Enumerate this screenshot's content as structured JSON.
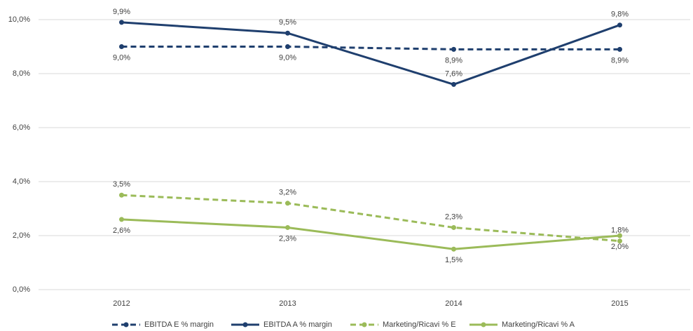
{
  "chart_data": {
    "type": "line",
    "categories": [
      "2012",
      "2013",
      "2014",
      "2015"
    ],
    "series": [
      {
        "name": "EBITDA E % margin",
        "color": "#1f3f6e",
        "dashed": true,
        "values": [
          9.0,
          9.0,
          8.9,
          8.9
        ],
        "value_labels": [
          "9,0%",
          "9,0%",
          "8,9%",
          "8,9%"
        ]
      },
      {
        "name": "EBITDA A % margin",
        "color": "#1f3f6e",
        "dashed": false,
        "values": [
          9.9,
          9.5,
          7.6,
          9.8
        ],
        "value_labels": [
          "9,9%",
          "9,5%",
          "7,6%",
          "9,8%"
        ]
      },
      {
        "name": "Marketing/Ricavi % E",
        "color": "#9bbb59",
        "dashed": true,
        "values": [
          3.5,
          3.2,
          2.3,
          1.8
        ],
        "value_labels": [
          "3,5%",
          "3,2%",
          "2,3%",
          "1,8%"
        ]
      },
      {
        "name": "Marketing/Ricavi % A",
        "color": "#9bbb59",
        "dashed": false,
        "values": [
          2.6,
          2.3,
          1.5,
          2.0
        ],
        "value_labels": [
          "2,6%",
          "2,3%",
          "1,5%",
          "2,0%"
        ]
      }
    ],
    "ylim": [
      0,
      10
    ],
    "yticks": [
      {
        "value": 0,
        "label": "0,0%"
      },
      {
        "value": 2,
        "label": "2,0%"
      },
      {
        "value": 4,
        "label": "4,0%"
      },
      {
        "value": 6,
        "label": "6,0%"
      },
      {
        "value": 8,
        "label": "8,0%"
      },
      {
        "value": 10,
        "label": "10,0%"
      }
    ],
    "grid": true
  }
}
